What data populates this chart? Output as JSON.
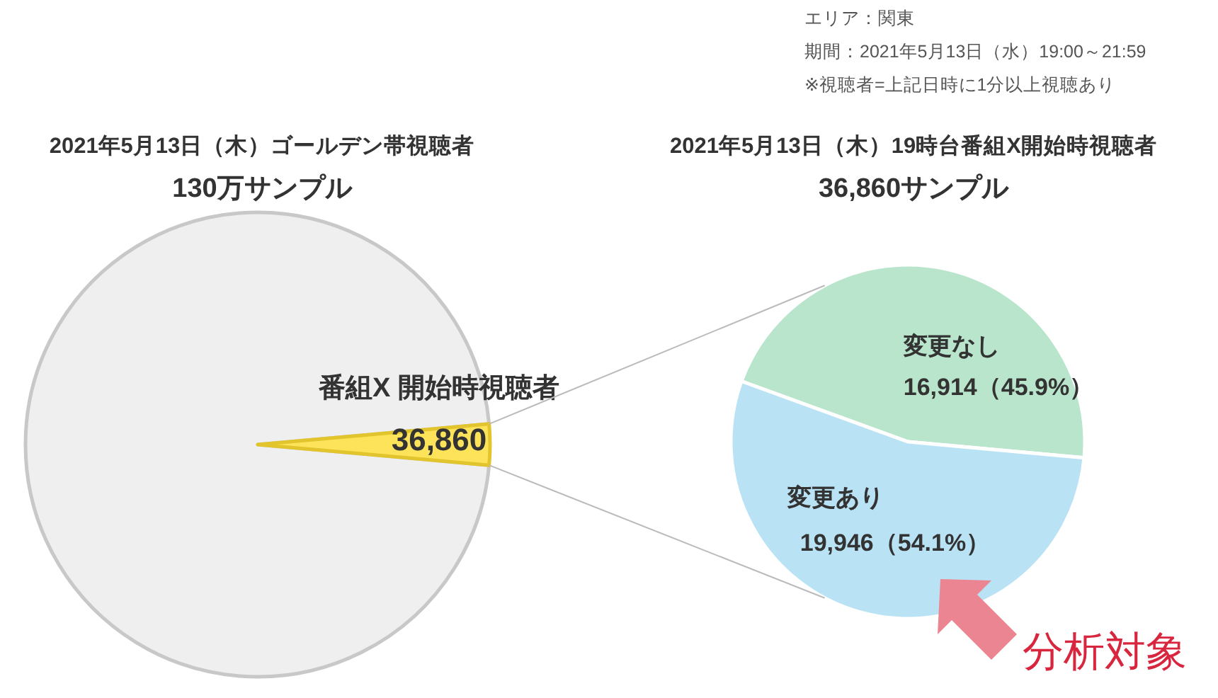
{
  "chart_data": [
    {
      "type": "pie",
      "title": "2021年5月13日（木）ゴールデン帯視聴者",
      "subtitle": "130万サンプル",
      "categories": [
        null,
        "番組X 開始時視聴者"
      ],
      "values": [
        1263140,
        36860
      ],
      "colors": [
        "#efefef",
        "#fde35a"
      ],
      "value_labels": [
        null,
        "36,860"
      ]
    },
    {
      "type": "pie",
      "title": "2021年5月13日（木）19時台番組X開始時視聴者",
      "subtitle": "36,860サンプル",
      "categories": [
        "変更なし",
        "変更あり"
      ],
      "values": [
        16914,
        19946
      ],
      "colors": [
        "#b8e5cb",
        "#b9e3f4"
      ],
      "value_labels": [
        "16,914（45.9%）",
        "19,946（54.1%）"
      ],
      "annotations": [
        "エリア：関東",
        "期間：2021年5月13日（水）19:00～21:59",
        "※視聴者=上記日時に1分以上視聴あり",
        "分析対象"
      ]
    }
  ]
}
